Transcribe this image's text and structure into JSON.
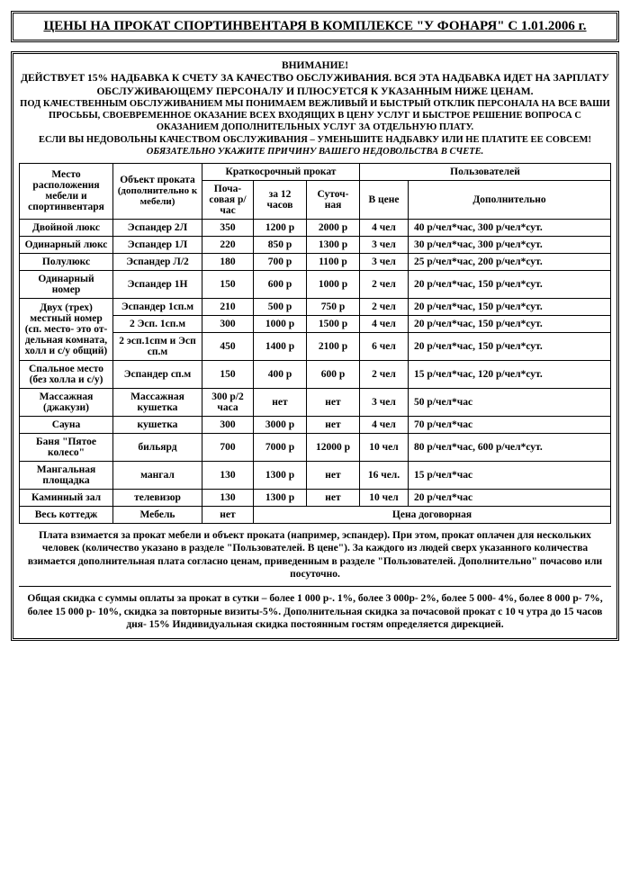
{
  "title": "ЦЕНЫ НА ПРОКАТ СПОРТИНВЕНТАРЯ В КОМПЛЕКСЕ \"У ФОНАРЯ\" С 1.01.2006 г.",
  "notice": {
    "heading": "ВНИМАНИЕ!",
    "line1": "ДЕЙСТВУЕТ 15% НАДБАВКА К СЧЕТУ ЗА КАЧЕСТВО ОБСЛУЖИВАНИЯ. ВСЯ ЭТА НАДБАВКА ИДЕТ НА ЗАРПЛАТУ ОБСЛУЖИВАЮЩЕМУ ПЕРСОНАЛУ И ПЛЮСУЕТСЯ К УКАЗАННЫМ НИЖЕ  ЦЕНАМ.",
    "line2": "ПОД КАЧЕСТВЕННЫМ ОБСЛУЖИВАНИЕМ МЫ ПОНИМАЕМ ВЕЖЛИВЫЙ И БЫСТРЫЙ ОТКЛИК ПЕРСОНАЛА НА ВСЕ ВАШИ ПРОСЬБЫ, СВОЕВРЕМЕННОЕ ОКАЗАНИЕ ВСЕХ ВХОДЯЩИХ В ЦЕНУ УСЛУГ И БЫСТРОЕ РЕШЕНИЕ ВОПРОСА С ОКАЗАНИЕМ ДОПОЛНИТЕЛЬНЫХ УСЛУГ ЗА ОТДЕЛЬНУЮ ПЛАТУ.",
    "line3a": "ЕСЛИ ВЫ НЕДОВОЛЬНЫ КАЧЕСТВОМ ОБСЛУЖИВАНИЯ – УМЕНЬШИТЕ НАДБАВКУ ИЛИ НЕ ПЛАТИТЕ ЕЕ СОВСЕМ! ",
    "line3b": "ОБЯЗАТЕЛЬНО УКАЖИТЕ ПРИЧИНУ ВАШЕГО НЕДОВОЛЬСТВА В СЧЕТЕ."
  },
  "headers": {
    "location": "Место расположения мебели и спортинвентаря",
    "object": "Объект проката",
    "object_sub": "(дополнительно к мебели)",
    "short_term": "Краткосрочный прокат",
    "users": "Пользователей",
    "hourly": "Поча-совая р/час",
    "per12": "за 12 часов",
    "daily": "Суточ-ная",
    "in_price": "В цене",
    "additional": "Дополнительно"
  },
  "rows": [
    {
      "loc": "Двойной люкс",
      "obj": "Эспандер 2Л",
      "h": "350",
      "p12": "1200 р",
      "d": "2000 р",
      "ip": "4 чел",
      "add": "40 р/чел*час, 300 р/чел*сут."
    },
    {
      "loc": "Одинарный люкс",
      "obj": "Эспандер 1Л",
      "h": "220",
      "p12": "850 р",
      "d": "1300 р",
      "ip": "3 чел",
      "add": "30 р/чел*час, 300 р/чел*сут."
    },
    {
      "loc": "Полулюкс",
      "obj": "Эспандер Л/2",
      "h": "180",
      "p12": "700 р",
      "d": "1100 р",
      "ip": "3 чел",
      "add": "25 р/чел*час, 200 р/чел*сут."
    },
    {
      "loc": "Одинарный номер",
      "obj": "Эспандер 1Н",
      "h": "150",
      "p12": "600 р",
      "d": "1000 р",
      "ip": "2 чел",
      "add": "20 р/чел*час, 150 р/чел*сут."
    }
  ],
  "multi": {
    "loc": "Двух (трех) местный номер (сп. место- это от-дельная комната, холл и с/у общий)",
    "r": [
      {
        "obj": "Эспандер 1сп.м",
        "h": "210",
        "p12": "500 р",
        "d": "750 р",
        "ip": "2 чел",
        "add": "20 р/чел*час, 150 р/чел*сут."
      },
      {
        "obj": "2 Эсп. 1сп.м",
        "h": "300",
        "p12": "1000 р",
        "d": "1500 р",
        "ip": "4 чел",
        "add": "20 р/чел*час, 150 р/чел*сут."
      },
      {
        "obj": "2 эсп.1спм и Эсп сп.м",
        "h": "450",
        "p12": "1400 р",
        "d": "2100 р",
        "ip": "6 чел",
        "add": "20 р/чел*час, 150 р/чел*сут."
      }
    ]
  },
  "rows2": [
    {
      "loc": "Спальное место (без холла и с/у)",
      "obj": "Эспандер сп.м",
      "h": "150",
      "p12": "400 р",
      "d": "600 р",
      "ip": "2 чел",
      "add": "15 р/чел*час, 120 р/чел*сут."
    },
    {
      "loc": "Массажная (джакузи)",
      "obj": "Массажная кушетка",
      "h": "300 р/2 часа",
      "p12": "нет",
      "d": "нет",
      "ip": "3 чел",
      "add": "50 р/чел*час"
    },
    {
      "loc": "Сауна",
      "obj": "кушетка",
      "h": "300",
      "p12": "3000 р",
      "d": "нет",
      "ip": "4 чел",
      "add": "70 р/чел*час"
    },
    {
      "loc": "Баня \"Пятое колесо\"",
      "obj": "бильярд",
      "h": "700",
      "p12": "7000 р",
      "d": "12000 р",
      "ip": "10 чел",
      "add": "80 р/чел*час, 600 р/чел*сут."
    },
    {
      "loc": "Мангальная площадка",
      "obj": "мангал",
      "h": "130",
      "p12": "1300 р",
      "d": "нет",
      "ip": "16 чел.",
      "add": "15 р/чел*час"
    },
    {
      "loc": "Каминный зал",
      "obj": "телевизор",
      "h": "130",
      "p12": "1300 р",
      "d": "нет",
      "ip": "10 чел",
      "add": "20 р/чел*час"
    }
  ],
  "last": {
    "loc": "Весь коттедж",
    "obj": "Мебель",
    "h": "нет",
    "rest": "Цена договорная"
  },
  "footer1": "Плата взимается за прокат мебели и объект проката (например, эспандер). При этом, прокат оплачен для нескольких человек (количество указано в разделе \"Пользователей. В цене\"). За каждого из людей сверх указанного количества взимается дополнительная плата согласно ценам, приведенным в разделе \"Пользователей. Дополнительно\" почасово или посуточно.",
  "footer2": "Общая скидка с суммы оплаты  за  прокат  в сутки  –  более  1 000 р-. 1%, более  3 000р- 2%, более 5 000- 4%, более 8 000 р- 7%, более 15 000 р- 10%, скидка за повторные визиты-5%. Дополнительная скидка за почасовой прокат  с 10 ч утра до 15 часов дня- 15% Индивидуальная скидка постоянным гостям определяется дирекцией."
}
